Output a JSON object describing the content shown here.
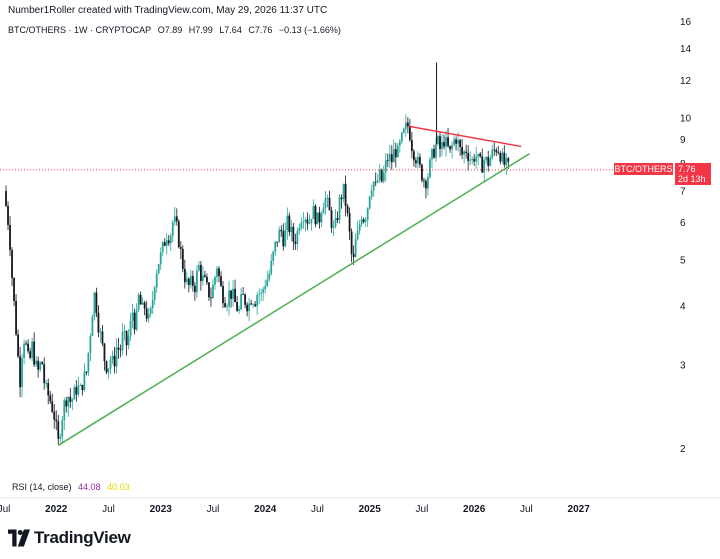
{
  "header": {
    "note": "Number1Roller created with TradingView.com, May 29, 2026 11:37 UTC"
  },
  "symbol": {
    "name": "BTC/OTHERS · 1W · CRYPTOCAP",
    "open": "O7.89",
    "high": "H7.99",
    "low": "L7.64",
    "close": "C7.76",
    "change": "−0.13 (−1.66%)"
  },
  "price_label": {
    "name": "BTC/OTHERS",
    "value": "7.76",
    "countdown": "2d 13h",
    "color": "#f23645"
  },
  "rsi": {
    "label": "RSI (14, close)",
    "value1": "44.08",
    "value2": "40.03",
    "color1": "#9c27b0",
    "color2": "#dddd00"
  },
  "brand": {
    "name": "TradingView"
  },
  "colors": {
    "up": "#26a69a",
    "down": "#131722",
    "support": "#4caf50",
    "resistance": "#f23645"
  },
  "chart_data": {
    "type": "candlestick",
    "scale": "log",
    "ylim": [
      1.8,
      16.5
    ],
    "y_ticks": [
      2,
      3,
      4,
      5,
      6,
      7,
      8,
      9,
      10,
      12,
      14,
      16
    ],
    "x_range": [
      2021.5,
      2027.3
    ],
    "x_ticks": [
      {
        "t": 2021.5,
        "label": "Jul",
        "bold": false
      },
      {
        "t": 2022.0,
        "label": "2022",
        "bold": true
      },
      {
        "t": 2022.5,
        "label": "Jul",
        "bold": false
      },
      {
        "t": 2023.0,
        "label": "2023",
        "bold": true
      },
      {
        "t": 2023.5,
        "label": "Jul",
        "bold": false
      },
      {
        "t": 2024.0,
        "label": "2024",
        "bold": true
      },
      {
        "t": 2024.5,
        "label": "Jul",
        "bold": false
      },
      {
        "t": 2025.0,
        "label": "2025",
        "bold": true
      },
      {
        "t": 2025.5,
        "label": "Jul",
        "bold": false
      },
      {
        "t": 2026.0,
        "label": "2026",
        "bold": true
      },
      {
        "t": 2026.5,
        "label": "Jul",
        "bold": false
      },
      {
        "t": 2027.0,
        "label": "2027",
        "bold": true
      }
    ],
    "close_path": [
      [
        2021.5,
        7.0
      ],
      [
        2021.52,
        6.5
      ],
      [
        2021.55,
        5.8
      ],
      [
        2021.58,
        4.5
      ],
      [
        2021.61,
        3.7
      ],
      [
        2021.63,
        3.2
      ],
      [
        2021.66,
        2.7
      ],
      [
        2021.68,
        3.5
      ],
      [
        2021.71,
        3.3
      ],
      [
        2021.74,
        3.0
      ],
      [
        2021.77,
        3.3
      ],
      [
        2021.8,
        3.0
      ],
      [
        2021.83,
        2.9
      ],
      [
        2021.86,
        3.1
      ],
      [
        2021.89,
        2.7
      ],
      [
        2021.92,
        2.6
      ],
      [
        2021.95,
        2.5
      ],
      [
        2021.98,
        2.35
      ],
      [
        2022.0,
        2.2
      ],
      [
        2022.02,
        2.05
      ],
      [
        2022.05,
        2.3
      ],
      [
        2022.08,
        2.5
      ],
      [
        2022.11,
        2.6
      ],
      [
        2022.14,
        2.5
      ],
      [
        2022.17,
        2.6
      ],
      [
        2022.2,
        2.7
      ],
      [
        2022.23,
        2.65
      ],
      [
        2022.26,
        2.8
      ],
      [
        2022.29,
        2.9
      ],
      [
        2022.32,
        3.4
      ],
      [
        2022.35,
        4.0
      ],
      [
        2022.37,
        4.3
      ],
      [
        2022.4,
        3.7
      ],
      [
        2022.43,
        3.4
      ],
      [
        2022.46,
        3.1
      ],
      [
        2022.49,
        2.95
      ],
      [
        2022.52,
        3.1
      ],
      [
        2022.55,
        3.0
      ],
      [
        2022.58,
        3.3
      ],
      [
        2022.61,
        3.2
      ],
      [
        2022.64,
        3.5
      ],
      [
        2022.67,
        3.3
      ],
      [
        2022.7,
        3.5
      ],
      [
        2022.73,
        3.9
      ],
      [
        2022.76,
        3.6
      ],
      [
        2022.79,
        4.2
      ],
      [
        2022.82,
        3.9
      ],
      [
        2022.85,
        4.0
      ],
      [
        2022.88,
        3.7
      ],
      [
        2022.91,
        3.9
      ],
      [
        2022.94,
        4.5
      ],
      [
        2022.97,
        4.9
      ],
      [
        2023.0,
        5.1
      ],
      [
        2023.03,
        5.4
      ],
      [
        2023.06,
        5.7
      ],
      [
        2023.09,
        5.6
      ],
      [
        2023.12,
        6.1
      ],
      [
        2023.15,
        5.9
      ],
      [
        2023.18,
        5.4
      ],
      [
        2023.21,
        4.9
      ],
      [
        2023.24,
        4.5
      ],
      [
        2023.27,
        4.4
      ],
      [
        2023.3,
        4.5
      ],
      [
        2023.33,
        4.4
      ],
      [
        2023.36,
        4.9
      ],
      [
        2023.39,
        4.6
      ],
      [
        2023.42,
        4.5
      ],
      [
        2023.45,
        4.3
      ],
      [
        2023.48,
        4.2
      ],
      [
        2023.51,
        4.5
      ],
      [
        2023.54,
        4.9
      ],
      [
        2023.57,
        4.4
      ],
      [
        2023.6,
        4.2
      ],
      [
        2023.63,
        4.1
      ],
      [
        2023.66,
        4.3
      ],
      [
        2023.69,
        4.2
      ],
      [
        2023.72,
        4.0
      ],
      [
        2023.75,
        3.9
      ],
      [
        2023.78,
        4.2
      ],
      [
        2023.81,
        4.1
      ],
      [
        2023.84,
        4.0
      ],
      [
        2023.87,
        4.2
      ],
      [
        2023.9,
        4.1
      ],
      [
        2023.93,
        4.3
      ],
      [
        2023.96,
        4.2
      ],
      [
        2024.0,
        4.5
      ],
      [
        2024.03,
        4.6
      ],
      [
        2024.06,
        4.9
      ],
      [
        2024.09,
        5.3
      ],
      [
        2024.12,
        5.6
      ],
      [
        2024.15,
        5.8
      ],
      [
        2024.18,
        5.5
      ],
      [
        2024.21,
        6.0
      ],
      [
        2024.24,
        5.8
      ],
      [
        2024.27,
        5.5
      ],
      [
        2024.3,
        5.6
      ],
      [
        2024.33,
        6.1
      ],
      [
        2024.36,
        6.3
      ],
      [
        2024.39,
        6.2
      ],
      [
        2024.42,
        6.0
      ],
      [
        2024.45,
        6.4
      ],
      [
        2024.48,
        6.2
      ],
      [
        2024.51,
        6.0
      ],
      [
        2024.54,
        6.5
      ],
      [
        2024.57,
        6.8
      ],
      [
        2024.6,
        6.5
      ],
      [
        2024.63,
        6.1
      ],
      [
        2024.66,
        5.7
      ],
      [
        2024.69,
        6.2
      ],
      [
        2024.72,
        6.8
      ],
      [
        2024.75,
        7.0
      ],
      [
        2024.78,
        6.4
      ],
      [
        2024.81,
        5.6
      ],
      [
        2024.84,
        4.8
      ],
      [
        2024.86,
        5.4
      ],
      [
        2024.89,
        5.7
      ],
      [
        2024.92,
        6.3
      ],
      [
        2024.95,
        6.1
      ],
      [
        2024.98,
        6.5
      ],
      [
        2025.0,
        7.0
      ],
      [
        2025.03,
        7.4
      ],
      [
        2025.06,
        7.1
      ],
      [
        2025.09,
        7.6
      ],
      [
        2025.12,
        7.3
      ],
      [
        2025.15,
        7.9
      ],
      [
        2025.18,
        8.3
      ],
      [
        2025.21,
        8.1
      ],
      [
        2025.24,
        8.6
      ],
      [
        2025.27,
        8.4
      ],
      [
        2025.3,
        8.9
      ],
      [
        2025.33,
        9.3
      ],
      [
        2025.36,
        9.7
      ],
      [
        2025.38,
        9.4
      ],
      [
        2025.41,
        8.6
      ],
      [
        2025.44,
        8.3
      ],
      [
        2025.47,
        7.9
      ],
      [
        2025.5,
        7.6
      ],
      [
        2025.53,
        7.3
      ],
      [
        2025.56,
        7.6
      ],
      [
        2025.59,
        8.2
      ],
      [
        2025.62,
        8.6
      ],
      [
        2025.65,
        8.9
      ],
      [
        2025.68,
        8.5
      ],
      [
        2025.71,
        9.0
      ],
      [
        2025.74,
        8.7
      ],
      [
        2025.77,
        8.4
      ],
      [
        2025.8,
        8.9
      ],
      [
        2025.83,
        9.1
      ],
      [
        2025.86,
        8.6
      ],
      [
        2025.89,
        8.3
      ],
      [
        2025.92,
        8.6
      ],
      [
        2025.95,
        8.3
      ],
      [
        2025.98,
        8.1
      ],
      [
        2026.01,
        8.4
      ],
      [
        2026.04,
        8.1
      ],
      [
        2026.07,
        7.9
      ],
      [
        2026.1,
        8.2
      ],
      [
        2026.13,
        8.0
      ],
      [
        2026.16,
        8.3
      ],
      [
        2026.19,
        8.5
      ],
      [
        2026.22,
        8.7
      ],
      [
        2026.25,
        8.4
      ],
      [
        2026.28,
        8.0
      ],
      [
        2026.31,
        7.9
      ],
      [
        2026.34,
        7.76
      ]
    ],
    "spike": {
      "t": 2025.64,
      "high": 13.1
    },
    "support_line": [
      [
        2022.02,
        2.03
      ],
      [
        2026.53,
        8.4
      ]
    ],
    "resistance_line": [
      [
        2025.37,
        9.6
      ],
      [
        2026.45,
        8.7
      ]
    ],
    "last_price": 7.76
  }
}
